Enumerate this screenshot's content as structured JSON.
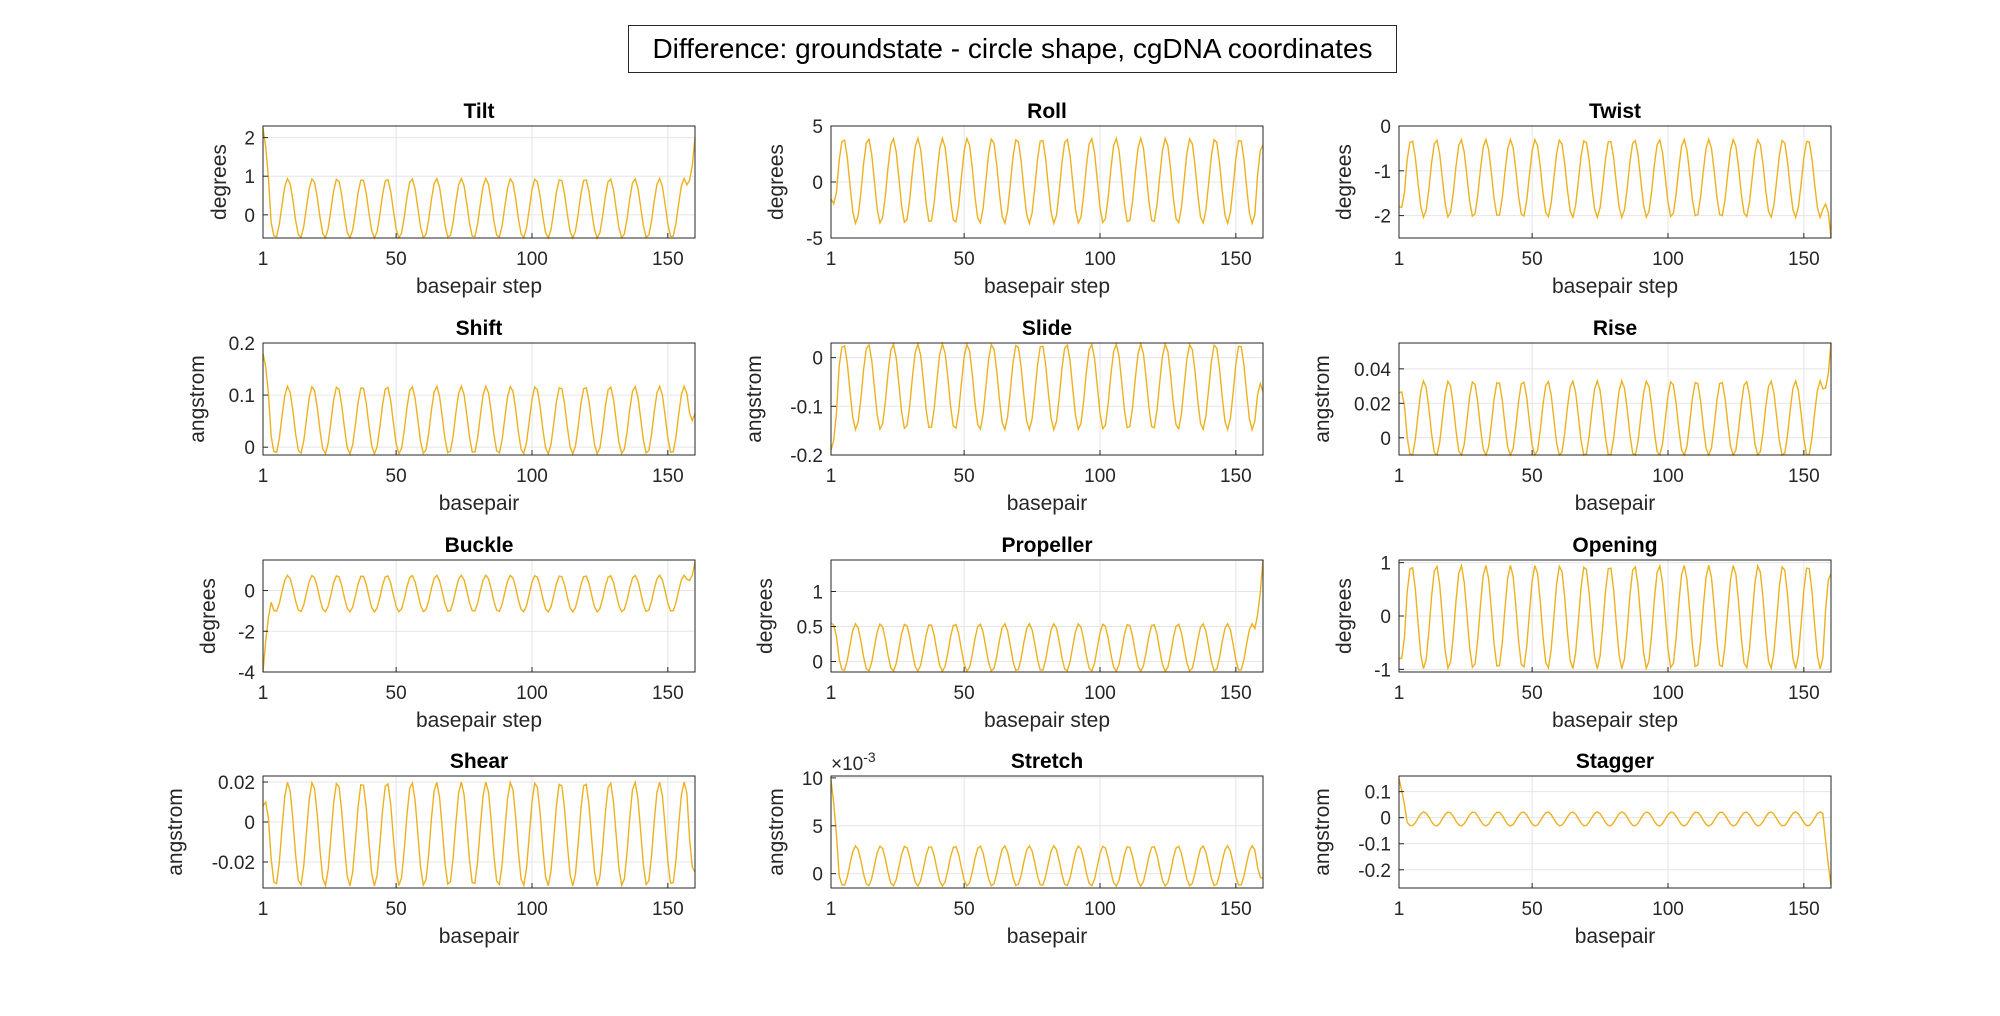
{
  "figure_title": "Difference: groundstate - circle shape, cgDNA coordinates",
  "colors": {
    "line": "#EDB120",
    "axis": "#262626",
    "grid": "#E5E5E5"
  },
  "chart_data": [
    {
      "type": "line",
      "title": "Tilt",
      "xlabel": "basepair step",
      "ylabel": "degrees",
      "xlim": [
        1,
        160
      ],
      "ylim": [
        -0.6,
        2.3
      ],
      "xticks": [
        1,
        50,
        100,
        150
      ],
      "yticks": [
        0,
        1,
        2
      ],
      "ytick_labels": [
        "0",
        "1",
        "2"
      ],
      "grid": true,
      "series": [
        {
          "period": 9.12,
          "amplitude": 0.77,
          "offset": 0.17,
          "phase": 0,
          "start_value": 2.25,
          "end_value": 2.0
        }
      ]
    },
    {
      "type": "line",
      "title": "Roll",
      "xlabel": "basepair step",
      "ylabel": "degrees",
      "xlim": [
        1,
        160
      ],
      "ylim": [
        -5,
        5
      ],
      "xticks": [
        1,
        50,
        100,
        150
      ],
      "yticks": [
        -5,
        0,
        5
      ],
      "ytick_labels": [
        "-5",
        "0",
        "5"
      ],
      "grid": true,
      "series": [
        {
          "period": 9.12,
          "amplitude": 3.8,
          "offset": 0.1,
          "phase": 3.14,
          "start_value": -1.5,
          "end_value": 3.3
        }
      ]
    },
    {
      "type": "line",
      "title": "Twist",
      "xlabel": "basepair step",
      "ylabel": "degrees",
      "xlim": [
        1,
        160
      ],
      "ylim": [
        -2.5,
        0
      ],
      "xticks": [
        1,
        50,
        100,
        150
      ],
      "yticks": [
        -2,
        -1,
        0
      ],
      "ytick_labels": [
        "-2",
        "-1",
        "0"
      ],
      "grid": true,
      "series": [
        {
          "period": 9.12,
          "amplitude": 0.87,
          "offset": -1.17,
          "phase": 3.14,
          "start_value": -1.8,
          "end_value": -2.5
        }
      ]
    },
    {
      "type": "line",
      "title": "Shift",
      "xlabel": "basepair",
      "ylabel": "angstrom",
      "xlim": [
        1,
        160
      ],
      "ylim": [
        -0.015,
        0.2
      ],
      "xticks": [
        1,
        50,
        100,
        150
      ],
      "yticks": [
        0,
        0.1,
        0.2
      ],
      "ytick_labels": [
        "0",
        "0.1",
        "0.2"
      ],
      "grid": true,
      "series": [
        {
          "period": 9.12,
          "amplitude": 0.065,
          "offset": 0.052,
          "phase": 0,
          "start_value": 0.18,
          "end_value": 0.065
        }
      ]
    },
    {
      "type": "line",
      "title": "Slide",
      "xlabel": "basepair",
      "ylabel": "angstrom",
      "xlim": [
        1,
        160
      ],
      "ylim": [
        -0.2,
        0.03
      ],
      "xticks": [
        1,
        50,
        100,
        150
      ],
      "yticks": [
        -0.2,
        -0.1,
        0
      ],
      "ytick_labels": [
        "-0.2",
        "-0.1",
        "0"
      ],
      "grid": true,
      "series": [
        {
          "period": 9.12,
          "amplitude": 0.088,
          "offset": -0.06,
          "phase": 3.14,
          "start_value": -0.19,
          "end_value": -0.07
        }
      ]
    },
    {
      "type": "line",
      "title": "Rise",
      "xlabel": "basepair",
      "ylabel": "angstrom",
      "xlim": [
        1,
        160
      ],
      "ylim": [
        -0.01,
        0.055
      ],
      "xticks": [
        1,
        50,
        100,
        150
      ],
      "yticks": [
        0,
        0.02,
        0.04
      ],
      "ytick_labels": [
        "0",
        "0.02",
        "0.04"
      ],
      "grid": true,
      "series": [
        {
          "period": 9.12,
          "amplitude": 0.022,
          "offset": 0.011,
          "phase": 0,
          "start_value": 0.026,
          "end_value": 0.055
        }
      ]
    },
    {
      "type": "line",
      "title": "Buckle",
      "xlabel": "basepair step",
      "ylabel": "degrees",
      "xlim": [
        1,
        160
      ],
      "ylim": [
        -4,
        1.5
      ],
      "xticks": [
        1,
        50,
        100,
        150
      ],
      "yticks": [
        -4,
        -2,
        0
      ],
      "ytick_labels": [
        "-4",
        "-2",
        "0"
      ],
      "grid": true,
      "series": [
        {
          "period": 9.12,
          "amplitude": 0.9,
          "offset": -0.15,
          "phase": 0,
          "start_value": -4.0,
          "end_value": 1.4
        }
      ]
    },
    {
      "type": "line",
      "title": "Propeller",
      "xlabel": "basepair step",
      "ylabel": "degrees",
      "xlim": [
        1,
        160
      ],
      "ylim": [
        -0.15,
        1.45
      ],
      "xticks": [
        1,
        50,
        100,
        150
      ],
      "yticks": [
        0,
        0.5,
        1
      ],
      "ytick_labels": [
        "0",
        "0.5",
        "1"
      ],
      "grid": true,
      "series": [
        {
          "period": 9.12,
          "amplitude": 0.34,
          "offset": 0.2,
          "phase": 0,
          "start_value": 0.55,
          "end_value": 1.45
        }
      ]
    },
    {
      "type": "line",
      "title": "Opening",
      "xlabel": "basepair step",
      "ylabel": "degrees",
      "xlim": [
        1,
        160
      ],
      "ylim": [
        -1.05,
        1.05
      ],
      "xticks": [
        1,
        50,
        100,
        150
      ],
      "yticks": [
        -1,
        0,
        1
      ],
      "ytick_labels": [
        "-1",
        "0",
        "1"
      ],
      "grid": true,
      "series": [
        {
          "period": 9.12,
          "amplitude": 0.97,
          "offset": -0.02,
          "phase": 3.14,
          "start_value": -0.8,
          "end_value": 0.8
        }
      ]
    },
    {
      "type": "line",
      "title": "Shear",
      "xlabel": "basepair",
      "ylabel": "angstrom",
      "xlim": [
        1,
        160
      ],
      "ylim": [
        -0.033,
        0.023
      ],
      "xticks": [
        1,
        50,
        100,
        150
      ],
      "yticks": [
        -0.02,
        0,
        0.02
      ],
      "ytick_labels": [
        "-0.02",
        "0",
        "0.02"
      ],
      "grid": true,
      "series": [
        {
          "period": 9.12,
          "amplitude": 0.026,
          "offset": -0.006,
          "phase": 0,
          "start_value": 0.008,
          "end_value": -0.025
        }
      ]
    },
    {
      "type": "line",
      "title": "Stretch",
      "xlabel": "basepair",
      "ylabel": "angstrom",
      "xlim": [
        1,
        160
      ],
      "ylim": [
        -0.0015,
        0.0102
      ],
      "xticks": [
        1,
        50,
        100,
        150
      ],
      "yticks": [
        0,
        0.005,
        0.01
      ],
      "ytick_labels": [
        "0",
        "5",
        "10"
      ],
      "exponent_label": "×10",
      "exponent_power": "-3",
      "grid": true,
      "series": [
        {
          "period": 9.12,
          "amplitude": 0.0021,
          "offset": 0.0008,
          "phase": 0,
          "start_value": 0.0098,
          "end_value": -0.0005
        }
      ]
    },
    {
      "type": "line",
      "title": "Stagger",
      "xlabel": "basepair",
      "ylabel": "angstrom",
      "xlim": [
        1,
        160
      ],
      "ylim": [
        -0.27,
        0.16
      ],
      "xticks": [
        1,
        50,
        100,
        150
      ],
      "yticks": [
        -0.2,
        -0.1,
        0,
        0.1
      ],
      "ytick_labels": [
        "-0.2",
        "-0.1",
        "0",
        "0.1"
      ],
      "grid": true,
      "series": [
        {
          "period": 9.12,
          "amplitude": 0.027,
          "offset": -0.005,
          "phase": 0,
          "start_value": 0.15,
          "end_value": -0.26
        }
      ]
    }
  ]
}
